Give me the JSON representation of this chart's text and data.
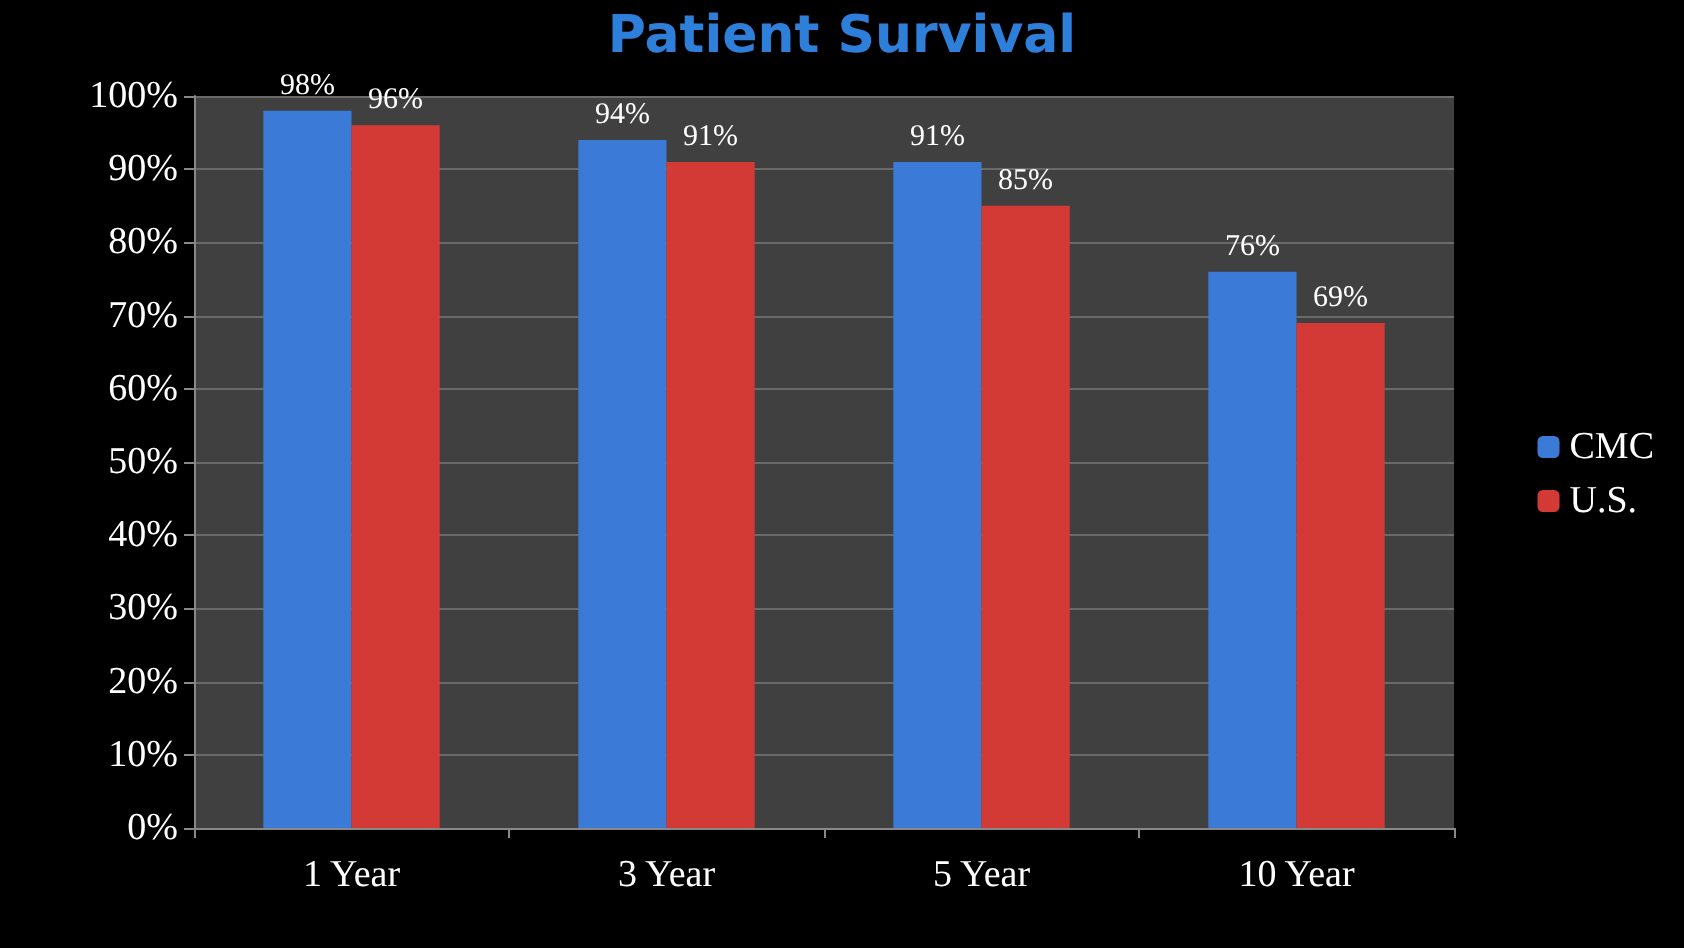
{
  "chart_data": {
    "type": "bar",
    "title": "Patient Survival",
    "categories": [
      "1 Year",
      "3 Year",
      "5 Year",
      "10 Year"
    ],
    "series": [
      {
        "name": "CMC",
        "color": "#3b7ad6",
        "values": [
          98,
          94,
          91,
          76
        ],
        "value_labels": [
          "98%",
          "94%",
          "91%",
          "76%"
        ]
      },
      {
        "name": "U.S.",
        "color": "#d43a35",
        "values": [
          96,
          91,
          85,
          69
        ],
        "value_labels": [
          "96%",
          "91%",
          "85%",
          "69%"
        ]
      }
    ],
    "ylim": [
      0,
      100
    ],
    "yticks": [
      {
        "value": 0,
        "label": "0%"
      },
      {
        "value": 10,
        "label": "10%"
      },
      {
        "value": 20,
        "label": "20%"
      },
      {
        "value": 30,
        "label": "30%"
      },
      {
        "value": 40,
        "label": "40%"
      },
      {
        "value": 50,
        "label": "50%"
      },
      {
        "value": 60,
        "label": "60%"
      },
      {
        "value": 70,
        "label": "70%"
      },
      {
        "value": 80,
        "label": "80%"
      },
      {
        "value": 90,
        "label": "90%"
      },
      {
        "value": 100,
        "label": "100%"
      }
    ],
    "grid": "y",
    "legend": "right"
  }
}
